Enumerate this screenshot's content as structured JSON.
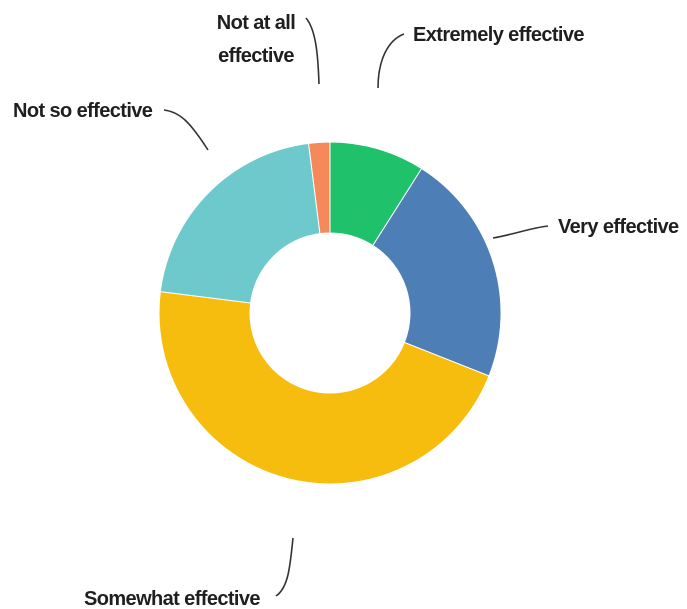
{
  "chart_data": {
    "type": "pie",
    "variant": "donut",
    "title": "",
    "legend": "none",
    "labels_on_chart": true,
    "slices": [
      {
        "label": "Extremely effective",
        "value": 9,
        "color": "#1fc16b"
      },
      {
        "label": "Very effective",
        "value": 22,
        "color": "#4d7eb6"
      },
      {
        "label": "Somewhat effective",
        "value": 46,
        "color": "#f7bd0e"
      },
      {
        "label": "Not so effective",
        "value": 21,
        "color": "#6ec9cc"
      },
      {
        "label": "Not at all effective",
        "value": 2,
        "color": "#f5895a"
      }
    ]
  }
}
